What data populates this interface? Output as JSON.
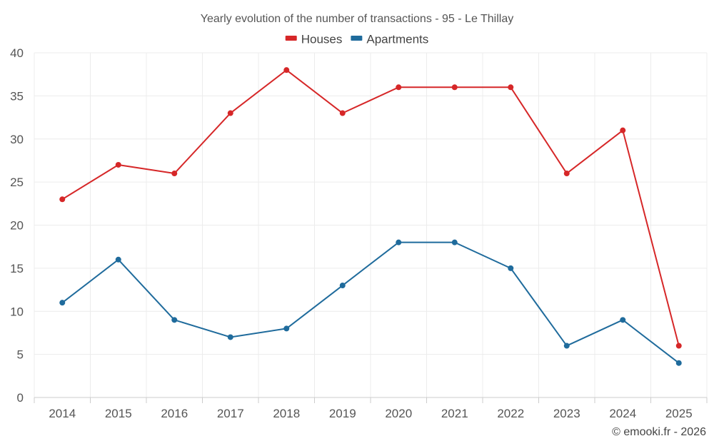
{
  "chart_data": {
    "type": "line",
    "title": "Yearly evolution of the number of transactions - 95 - Le Thillay",
    "categories": [
      "2014",
      "2015",
      "2016",
      "2017",
      "2018",
      "2019",
      "2020",
      "2021",
      "2022",
      "2023",
      "2024",
      "2025"
    ],
    "series": [
      {
        "name": "Houses",
        "color": "#d62728",
        "values": [
          23,
          27,
          26,
          33,
          38,
          33,
          36,
          36,
          36,
          26,
          31,
          6
        ]
      },
      {
        "name": "Apartments",
        "color": "#1f6b9c",
        "values": [
          11,
          16,
          9,
          7,
          8,
          13,
          18,
          18,
          15,
          6,
          9,
          4
        ]
      }
    ],
    "xlabel": "",
    "ylabel": "",
    "ylim": [
      0,
      40
    ],
    "yticks": [
      0,
      5,
      10,
      15,
      20,
      25,
      30,
      35,
      40
    ],
    "grid": true,
    "legend": "top-center"
  },
  "credit": "© emooki.fr - 2026"
}
